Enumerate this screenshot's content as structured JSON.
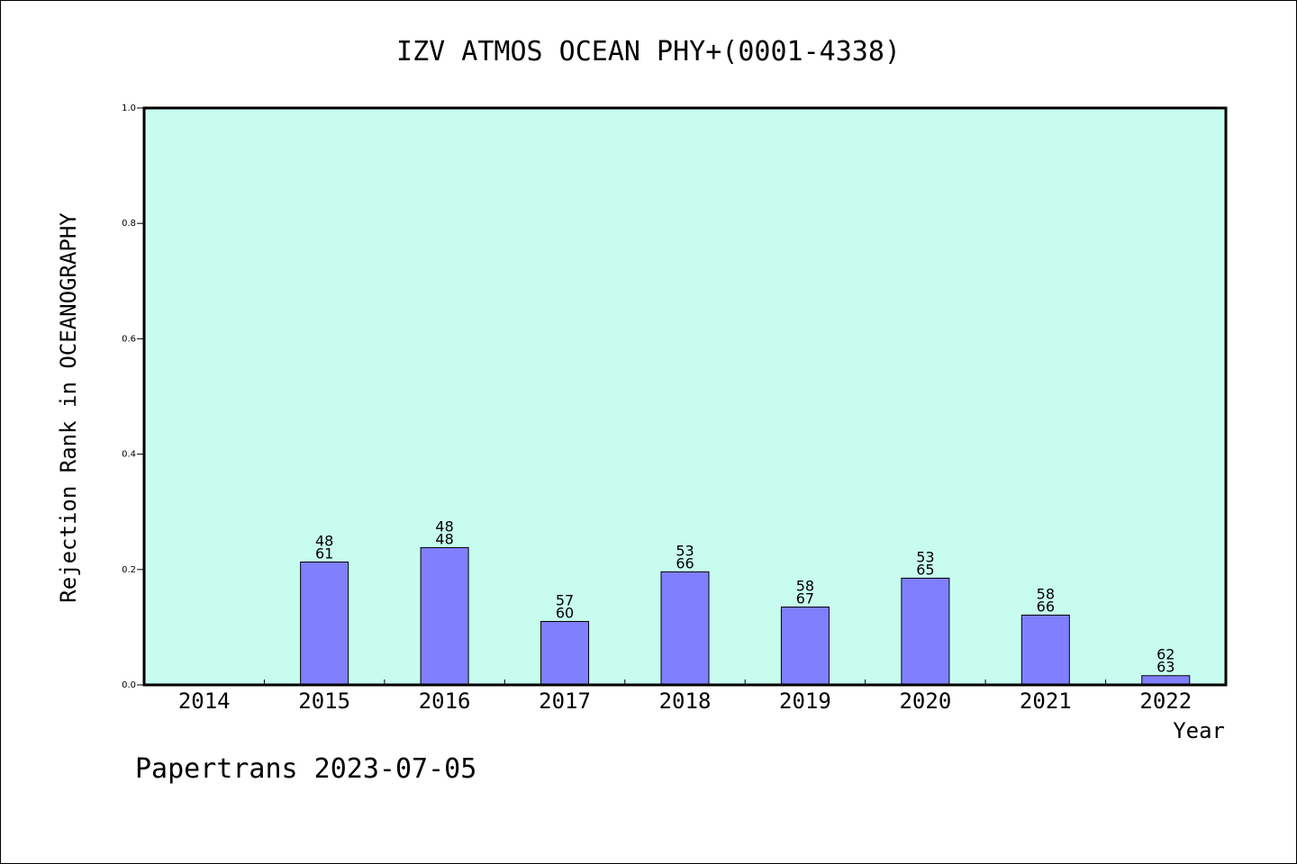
{
  "chart_data": {
    "type": "bar",
    "title": "IZV ATMOS OCEAN PHY+(0001-4338)",
    "xlabel": "Year",
    "ylabel": "Rejection Rank in OCEANOGRAPHY",
    "categories": [
      "2014",
      "2015",
      "2016",
      "2017",
      "2018",
      "2019",
      "2020",
      "2021",
      "2022"
    ],
    "values": [
      null,
      0.213,
      0.238,
      0.11,
      0.196,
      0.135,
      0.185,
      0.121,
      0.016
    ],
    "bar_labels": [
      [
        "",
        ""
      ],
      [
        "48",
        "61"
      ],
      [
        "48",
        "48"
      ],
      [
        "57",
        "60"
      ],
      [
        "53",
        "66"
      ],
      [
        "58",
        "67"
      ],
      [
        "53",
        "65"
      ],
      [
        "58",
        "66"
      ],
      [
        "62",
        "63"
      ]
    ],
    "ylim": [
      0,
      1.0
    ],
    "yticks": [
      "0.0",
      "0.2",
      "0.4",
      "0.6",
      "0.8",
      "1.0"
    ],
    "grid": false,
    "colors": {
      "plot_background": "#c8fcee",
      "bar_fill": "#8080ff",
      "bar_stroke": "#000000"
    }
  },
  "footer": {
    "text": "Papertrans 2023-07-05"
  }
}
